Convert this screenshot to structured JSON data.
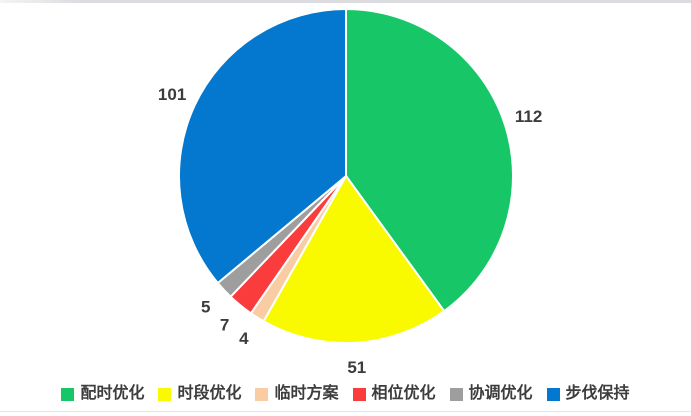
{
  "page": {
    "background": "#ffffff",
    "top_border_color": "#dcdce0",
    "bottom_border_color": "#e4e4e8"
  },
  "chart_data": {
    "type": "pie",
    "title": "",
    "categories": [
      "配时优化",
      "时段优化",
      "临时方案",
      "相位优化",
      "协调优化",
      "步伐保持"
    ],
    "values": [
      112,
      51,
      4,
      7,
      5,
      101
    ],
    "colors": [
      "#17C767",
      "#F9F900",
      "#FACCA4",
      "#FA3C3C",
      "#9E9E9E",
      "#0477CE"
    ],
    "total": 280,
    "start_angle_deg": -90,
    "direction": "clockwise",
    "data_labels_shown": true,
    "label_color": "#3c3c3c",
    "legend_position": "bottom",
    "slice_separator_color": "#ffffff"
  }
}
